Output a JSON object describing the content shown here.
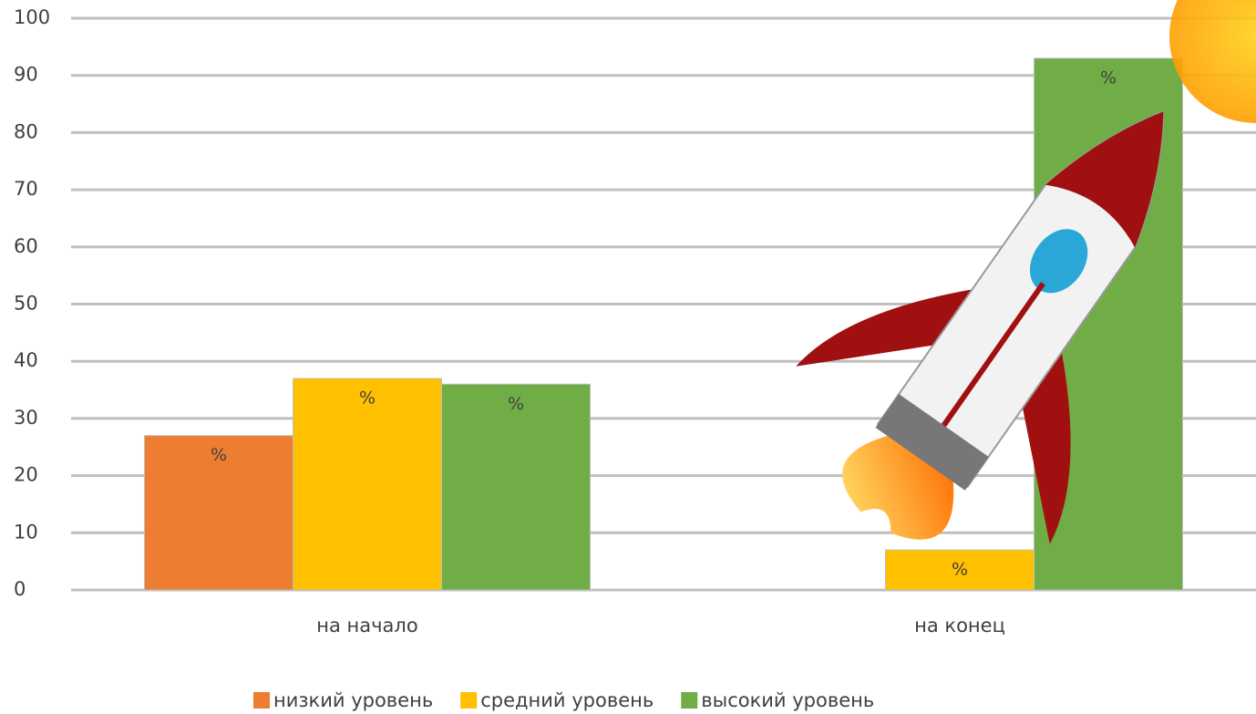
{
  "chart_data": {
    "type": "bar",
    "categories": [
      "на начало",
      "на конец"
    ],
    "series": [
      {
        "name": "низкий уровень",
        "color": "#ed7d31",
        "values": [
          27,
          null
        ],
        "value_labels": [
          "%",
          null
        ]
      },
      {
        "name": "средний уровень",
        "color": "#ffc000",
        "values": [
          37,
          7
        ],
        "value_labels": [
          "%",
          "%"
        ]
      },
      {
        "name": "высокий уровень",
        "color": "#70ad47",
        "values": [
          36,
          93
        ],
        "value_labels": [
          "%",
          "%"
        ]
      }
    ],
    "ylim": [
      0,
      100
    ],
    "yticks": [
      0,
      10,
      20,
      30,
      40,
      50,
      60,
      70,
      80,
      90,
      100
    ],
    "grid": true,
    "legend": "bottom"
  }
}
